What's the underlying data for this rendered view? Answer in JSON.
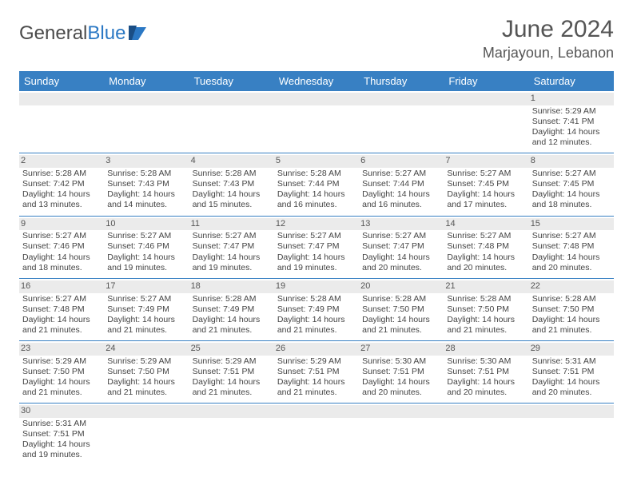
{
  "logo": {
    "part1": "General",
    "part2": "Blue"
  },
  "title": "June 2024",
  "location": "Marjayoun, Lebanon",
  "header_bg": "#3880c3",
  "rule_color": "#3880c3",
  "daynum_bg": "#ebebeb",
  "page_bg": "#ffffff",
  "font_family": "Arial",
  "base_fontsize_pt": 8,
  "columns": [
    "Sunday",
    "Monday",
    "Tuesday",
    "Wednesday",
    "Thursday",
    "Friday",
    "Saturday"
  ],
  "weeks": [
    [
      null,
      null,
      null,
      null,
      null,
      null,
      {
        "d": "1",
        "sunrise": "5:29 AM",
        "sunset": "7:41 PM",
        "dl_h": 14,
        "dl_m": 12
      }
    ],
    [
      {
        "d": "2",
        "sunrise": "5:28 AM",
        "sunset": "7:42 PM",
        "dl_h": 14,
        "dl_m": 13
      },
      {
        "d": "3",
        "sunrise": "5:28 AM",
        "sunset": "7:43 PM",
        "dl_h": 14,
        "dl_m": 14
      },
      {
        "d": "4",
        "sunrise": "5:28 AM",
        "sunset": "7:43 PM",
        "dl_h": 14,
        "dl_m": 15
      },
      {
        "d": "5",
        "sunrise": "5:28 AM",
        "sunset": "7:44 PM",
        "dl_h": 14,
        "dl_m": 16
      },
      {
        "d": "6",
        "sunrise": "5:27 AM",
        "sunset": "7:44 PM",
        "dl_h": 14,
        "dl_m": 16
      },
      {
        "d": "7",
        "sunrise": "5:27 AM",
        "sunset": "7:45 PM",
        "dl_h": 14,
        "dl_m": 17
      },
      {
        "d": "8",
        "sunrise": "5:27 AM",
        "sunset": "7:45 PM",
        "dl_h": 14,
        "dl_m": 18
      }
    ],
    [
      {
        "d": "9",
        "sunrise": "5:27 AM",
        "sunset": "7:46 PM",
        "dl_h": 14,
        "dl_m": 18
      },
      {
        "d": "10",
        "sunrise": "5:27 AM",
        "sunset": "7:46 PM",
        "dl_h": 14,
        "dl_m": 19
      },
      {
        "d": "11",
        "sunrise": "5:27 AM",
        "sunset": "7:47 PM",
        "dl_h": 14,
        "dl_m": 19
      },
      {
        "d": "12",
        "sunrise": "5:27 AM",
        "sunset": "7:47 PM",
        "dl_h": 14,
        "dl_m": 19
      },
      {
        "d": "13",
        "sunrise": "5:27 AM",
        "sunset": "7:47 PM",
        "dl_h": 14,
        "dl_m": 20
      },
      {
        "d": "14",
        "sunrise": "5:27 AM",
        "sunset": "7:48 PM",
        "dl_h": 14,
        "dl_m": 20
      },
      {
        "d": "15",
        "sunrise": "5:27 AM",
        "sunset": "7:48 PM",
        "dl_h": 14,
        "dl_m": 20
      }
    ],
    [
      {
        "d": "16",
        "sunrise": "5:27 AM",
        "sunset": "7:48 PM",
        "dl_h": 14,
        "dl_m": 21
      },
      {
        "d": "17",
        "sunrise": "5:27 AM",
        "sunset": "7:49 PM",
        "dl_h": 14,
        "dl_m": 21
      },
      {
        "d": "18",
        "sunrise": "5:28 AM",
        "sunset": "7:49 PM",
        "dl_h": 14,
        "dl_m": 21
      },
      {
        "d": "19",
        "sunrise": "5:28 AM",
        "sunset": "7:49 PM",
        "dl_h": 14,
        "dl_m": 21
      },
      {
        "d": "20",
        "sunrise": "5:28 AM",
        "sunset": "7:50 PM",
        "dl_h": 14,
        "dl_m": 21
      },
      {
        "d": "21",
        "sunrise": "5:28 AM",
        "sunset": "7:50 PM",
        "dl_h": 14,
        "dl_m": 21
      },
      {
        "d": "22",
        "sunrise": "5:28 AM",
        "sunset": "7:50 PM",
        "dl_h": 14,
        "dl_m": 21
      }
    ],
    [
      {
        "d": "23",
        "sunrise": "5:29 AM",
        "sunset": "7:50 PM",
        "dl_h": 14,
        "dl_m": 21
      },
      {
        "d": "24",
        "sunrise": "5:29 AM",
        "sunset": "7:50 PM",
        "dl_h": 14,
        "dl_m": 21
      },
      {
        "d": "25",
        "sunrise": "5:29 AM",
        "sunset": "7:51 PM",
        "dl_h": 14,
        "dl_m": 21
      },
      {
        "d": "26",
        "sunrise": "5:29 AM",
        "sunset": "7:51 PM",
        "dl_h": 14,
        "dl_m": 21
      },
      {
        "d": "27",
        "sunrise": "5:30 AM",
        "sunset": "7:51 PM",
        "dl_h": 14,
        "dl_m": 20
      },
      {
        "d": "28",
        "sunrise": "5:30 AM",
        "sunset": "7:51 PM",
        "dl_h": 14,
        "dl_m": 20
      },
      {
        "d": "29",
        "sunrise": "5:31 AM",
        "sunset": "7:51 PM",
        "dl_h": 14,
        "dl_m": 20
      }
    ],
    [
      {
        "d": "30",
        "sunrise": "5:31 AM",
        "sunset": "7:51 PM",
        "dl_h": 14,
        "dl_m": 19
      },
      null,
      null,
      null,
      null,
      null,
      null
    ]
  ],
  "labels": {
    "sunrise": "Sunrise:",
    "sunset": "Sunset:",
    "daylight": "Daylight:",
    "hours": "hours",
    "and": "and",
    "minutes": "minutes."
  }
}
